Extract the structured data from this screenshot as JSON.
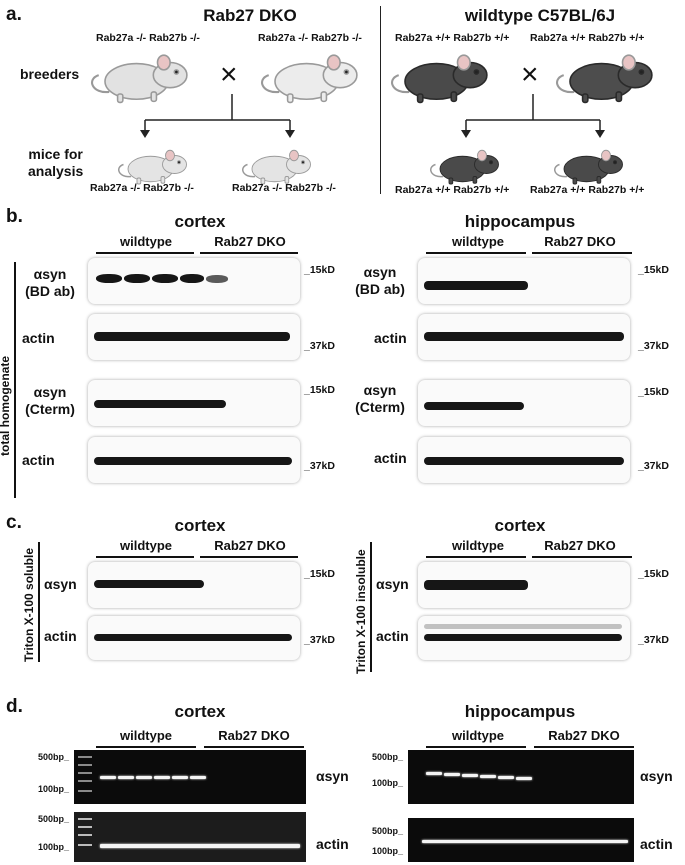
{
  "panel_a": {
    "letter": "a.",
    "left_title": "Rab27 DKO",
    "right_title": "wildtype C57BL/6J",
    "row_breeders": "breeders",
    "row_mice_line1": "mice for",
    "row_mice_line2": "analysis",
    "dko_genotype": "Rab27a -/- Rab27b -/-",
    "wt_genotype": "Rab27a +/+ Rab27b +/+",
    "cross_symbol": "×"
  },
  "panel_b": {
    "letter": "b.",
    "side_label": "total homogenate",
    "left_title": "cortex",
    "right_title": "hippocampus",
    "group_wt": "wildtype",
    "group_dko": "Rab27 DKO",
    "label_asyn": "αsyn",
    "label_bd": "(BD ab)",
    "label_cterm": "(Cterm)",
    "label_actin": "actin",
    "mw_15": "_15kD",
    "mw_37": "_37kD"
  },
  "panel_c": {
    "letter": "c.",
    "left_title": "cortex",
    "right_title": "cortex",
    "left_side_label": "Triton X-100 soluble",
    "right_side_label": "Triton X-100 insoluble",
    "group_wt": "wildtype",
    "group_dko": "Rab27 DKO",
    "label_asyn": "αsyn",
    "label_actin": "actin",
    "mw_15": "_15kD",
    "mw_37": "_37kD"
  },
  "panel_d": {
    "letter": "d.",
    "left_title": "cortex",
    "right_title": "hippocampus",
    "group_wt": "wildtype",
    "group_dko": "Rab27 DKO",
    "label_asyn": "αsyn",
    "label_actin": "actin",
    "bp_500": "500bp_",
    "bp_100": "100bp_"
  }
}
